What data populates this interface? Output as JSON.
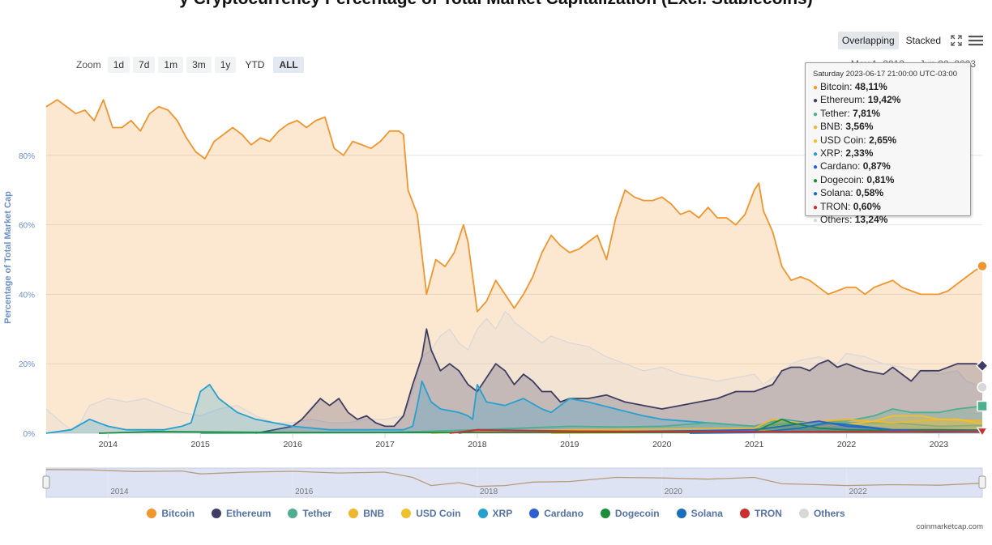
{
  "chart_title": "y Cryptocurrency Percentage of Total Market Capitalization (Excl. Stablecoins)",
  "toolbar": {
    "overlapping_label": "Overlapping",
    "stacked_label": "Stacked",
    "fullscreen_icon": "fullscreen-icon",
    "menu_icon": "hamburger-menu-icon"
  },
  "zoom": {
    "label": "Zoom",
    "buttons": [
      "1d",
      "7d",
      "1m",
      "3m",
      "1y",
      "YTD",
      "ALL"
    ],
    "active": "ALL"
  },
  "range_text": "May 1, 2013   →   Jun 20, 2023",
  "tooltip": {
    "header": "Saturday 2023-06-17 21:00:00 UTC-03:00",
    "rows": [
      {
        "name": "Bitcoin",
        "value": "48,11%",
        "color": "#f0952f"
      },
      {
        "name": "Ethereum",
        "value": "19,42%",
        "color": "#3f3d63"
      },
      {
        "name": "Tether",
        "value": "7,81%",
        "color": "#4fae8f"
      },
      {
        "name": "BNB",
        "value": "3,56%",
        "color": "#efb72f"
      },
      {
        "name": "USD Coin",
        "value": "2,65%",
        "color": "#f0c02d"
      },
      {
        "name": "XRP",
        "value": "2,33%",
        "color": "#27a0cf"
      },
      {
        "name": "Cardano",
        "value": "0,87%",
        "color": "#2d5fd0"
      },
      {
        "name": "Dogecoin",
        "value": "0,81%",
        "color": "#1b8e3d"
      },
      {
        "name": "Solana",
        "value": "0,58%",
        "color": "#1a6fbd"
      },
      {
        "name": "TRON",
        "value": "0,60%",
        "color": "#c8322e"
      },
      {
        "name": "Others",
        "value": "13,24%",
        "color": "#d8d8d8"
      }
    ]
  },
  "legend": [
    {
      "name": "Bitcoin",
      "color": "#f0952f"
    },
    {
      "name": "Ethereum",
      "color": "#3f3d63"
    },
    {
      "name": "Tether",
      "color": "#4fae8f"
    },
    {
      "name": "BNB",
      "color": "#efb72f"
    },
    {
      "name": "USD Coin",
      "color": "#f0c02d"
    },
    {
      "name": "XRP",
      "color": "#27a0cf"
    },
    {
      "name": "Cardano",
      "color": "#2d5fd0"
    },
    {
      "name": "Dogecoin",
      "color": "#1b8e3d"
    },
    {
      "name": "Solana",
      "color": "#1a6fbd"
    },
    {
      "name": "TRON",
      "color": "#c8322e"
    },
    {
      "name": "Others",
      "color": "#d8d8d8"
    }
  ],
  "credit": "coinmarketcap.com",
  "chart_data": {
    "type": "area",
    "ylabel": "Percentage of Total Market Cap",
    "yticks": [
      "0%",
      "20%",
      "40%",
      "60%",
      "80%"
    ],
    "ylim": [
      0,
      100
    ],
    "xlim": [
      2013.33,
      2023.47
    ],
    "xticks": [
      "2014",
      "2015",
      "2016",
      "2017",
      "2018",
      "2019",
      "2020",
      "2021",
      "2022",
      "2023"
    ],
    "navigator_ticks": [
      "2014",
      "2016",
      "2018",
      "2020",
      "2022"
    ],
    "grid": true,
    "series": [
      {
        "name": "Bitcoin",
        "color": "#f0952f",
        "x": [
          2013.33,
          2013.45,
          2013.55,
          2013.65,
          2013.75,
          2013.85,
          2013.95,
          2014.05,
          2014.15,
          2014.25,
          2014.35,
          2014.45,
          2014.55,
          2014.65,
          2014.75,
          2014.85,
          2014.95,
          2015.05,
          2015.15,
          2015.25,
          2015.35,
          2015.45,
          2015.55,
          2015.65,
          2015.75,
          2015.85,
          2015.95,
          2016.05,
          2016.15,
          2016.25,
          2016.35,
          2016.45,
          2016.55,
          2016.65,
          2016.75,
          2016.85,
          2016.95,
          2017.05,
          2017.15,
          2017.2,
          2017.25,
          2017.35,
          2017.45,
          2017.55,
          2017.65,
          2017.75,
          2017.85,
          2017.9,
          2017.95,
          2018.0,
          2018.1,
          2018.2,
          2018.3,
          2018.4,
          2018.5,
          2018.6,
          2018.7,
          2018.8,
          2018.9,
          2019.0,
          2019.1,
          2019.2,
          2019.3,
          2019.4,
          2019.5,
          2019.6,
          2019.7,
          2019.8,
          2019.9,
          2020.0,
          2020.1,
          2020.2,
          2020.3,
          2020.4,
          2020.5,
          2020.6,
          2020.7,
          2020.8,
          2020.9,
          2021.0,
          2021.05,
          2021.1,
          2021.15,
          2021.2,
          2021.3,
          2021.4,
          2021.5,
          2021.6,
          2021.7,
          2021.8,
          2021.9,
          2022.0,
          2022.1,
          2022.2,
          2022.3,
          2022.4,
          2022.5,
          2022.6,
          2022.7,
          2022.8,
          2022.9,
          2023.0,
          2023.1,
          2023.2,
          2023.3,
          2023.4,
          2023.47
        ],
        "values": [
          94,
          96,
          94,
          92,
          93,
          90,
          96,
          88,
          88,
          90,
          87,
          92,
          94,
          93,
          90,
          85,
          81,
          79,
          84,
          86,
          88,
          86,
          83,
          85,
          84,
          87,
          89,
          90,
          88,
          90,
          91,
          82,
          80,
          84,
          83,
          82,
          84,
          87,
          87,
          86,
          70,
          63,
          40,
          50,
          48,
          52,
          60,
          55,
          45,
          35,
          38,
          44,
          40,
          36,
          40,
          45,
          52,
          57,
          54,
          52,
          53,
          55,
          57,
          50,
          62,
          70,
          68,
          67,
          67,
          68,
          66,
          63,
          64,
          62,
          65,
          62,
          62,
          60,
          63,
          70,
          72,
          64,
          61,
          58,
          48,
          44,
          45,
          44,
          42,
          40,
          41,
          42,
          42,
          40,
          42,
          43,
          44,
          42,
          41,
          40,
          40,
          40,
          41,
          43,
          45,
          47,
          48
        ],
        "end_value": 48.11,
        "marker": "circle"
      },
      {
        "name": "Ethereum",
        "color": "#3f3d63",
        "x": [
          2015.6,
          2015.8,
          2016.0,
          2016.1,
          2016.2,
          2016.3,
          2016.4,
          2016.5,
          2016.6,
          2016.7,
          2016.8,
          2016.9,
          2017.0,
          2017.1,
          2017.2,
          2017.3,
          2017.4,
          2017.45,
          2017.5,
          2017.6,
          2017.7,
          2017.8,
          2017.9,
          2018.0,
          2018.1,
          2018.2,
          2018.3,
          2018.4,
          2018.5,
          2018.6,
          2018.7,
          2018.8,
          2018.9,
          2019.0,
          2019.2,
          2019.4,
          2019.6,
          2019.8,
          2020.0,
          2020.2,
          2020.4,
          2020.6,
          2020.8,
          2021.0,
          2021.2,
          2021.3,
          2021.4,
          2021.5,
          2021.6,
          2021.7,
          2021.8,
          2021.9,
          2022.0,
          2022.2,
          2022.4,
          2022.5,
          2022.7,
          2022.8,
          2023.0,
          2023.2,
          2023.4,
          2023.47
        ],
        "values": [
          0,
          1,
          2,
          4,
          7,
          10,
          8,
          10,
          6,
          4,
          5,
          3,
          2,
          2,
          5,
          14,
          22,
          30,
          24,
          18,
          20,
          18,
          14,
          12,
          16,
          20,
          18,
          14,
          17,
          15,
          12,
          12,
          9,
          10,
          10,
          11,
          9,
          8,
          7,
          8,
          9,
          10,
          12,
          12,
          14,
          18,
          19,
          19,
          18,
          20,
          21,
          19,
          20,
          18,
          17,
          19,
          15,
          18,
          18,
          20,
          20,
          19.4
        ],
        "end_value": 19.42,
        "marker": "diamond"
      },
      {
        "name": "XRP",
        "color": "#27a0cf",
        "x": [
          2013.33,
          2013.6,
          2013.8,
          2014.0,
          2014.2,
          2014.4,
          2014.6,
          2014.8,
          2014.9,
          2015.0,
          2015.1,
          2015.2,
          2015.4,
          2015.6,
          2015.8,
          2016.0,
          2016.4,
          2016.8,
          2017.0,
          2017.2,
          2017.3,
          2017.35,
          2017.4,
          2017.5,
          2017.6,
          2017.8,
          2017.9,
          2017.95,
          2018.0,
          2018.1,
          2018.3,
          2018.5,
          2018.7,
          2018.8,
          2018.9,
          2019.0,
          2019.2,
          2019.5,
          2019.8,
          2020.0,
          2020.5,
          2021.0,
          2021.3,
          2021.6,
          2022.0,
          2022.5,
          2023.0,
          2023.47
        ],
        "values": [
          0,
          1,
          4,
          2,
          1,
          1,
          1,
          2,
          3,
          12,
          14,
          10,
          6,
          4,
          3,
          2,
          1,
          1,
          1,
          1,
          2,
          8,
          15,
          9,
          7,
          6,
          5,
          4,
          14,
          9,
          8,
          10,
          7,
          6,
          8,
          10,
          9,
          7,
          5,
          4,
          3,
          2,
          4,
          3,
          3,
          3,
          2,
          2.3
        ],
        "end_value": 2.33,
        "marker": "none"
      },
      {
        "name": "Tether",
        "color": "#4fae8f",
        "x": [
          2015.0,
          2017.0,
          2018.0,
          2019.0,
          2019.5,
          2020.0,
          2020.5,
          2021.0,
          2021.5,
          2022.0,
          2022.3,
          2022.5,
          2022.7,
          2023.0,
          2023.2,
          2023.47
        ],
        "values": [
          0,
          0.2,
          1,
          2,
          1.8,
          2,
          3,
          2,
          3,
          3.5,
          5,
          7,
          6,
          6,
          7,
          7.8
        ],
        "end_value": 7.81,
        "marker": "square"
      },
      {
        "name": "BNB",
        "color": "#efb72f",
        "x": [
          2017.5,
          2018.0,
          2019.0,
          2020.0,
          2021.0,
          2021.2,
          2021.5,
          2022.0,
          2022.5,
          2023.0,
          2023.47
        ],
        "values": [
          0,
          0.5,
          1,
          1.2,
          1.5,
          4,
          3,
          4,
          3,
          4,
          3.6
        ],
        "end_value": 3.56,
        "marker": "none"
      },
      {
        "name": "USD Coin",
        "color": "#f0c02d",
        "x": [
          2018.8,
          2020.0,
          2021.0,
          2021.5,
          2022.0,
          2022.3,
          2022.5,
          2022.8,
          2023.0,
          2023.2,
          2023.47
        ],
        "values": [
          0,
          0.2,
          0.5,
          1.5,
          2.5,
          3.5,
          5,
          5,
          4,
          4,
          2.7
        ],
        "end_value": 2.65,
        "marker": "none"
      },
      {
        "name": "Cardano",
        "color": "#2d5fd0",
        "x": [
          2017.8,
          2018.0,
          2018.5,
          2019.5,
          2020.5,
          2021.0,
          2021.3,
          2021.7,
          2022.0,
          2022.5,
          2023.0,
          2023.47
        ],
        "values": [
          0,
          1,
          0.8,
          0.5,
          0.8,
          1,
          2,
          3.5,
          2,
          1,
          1,
          0.9
        ],
        "end_value": 0.87,
        "marker": "none"
      },
      {
        "name": "Dogecoin",
        "color": "#1b8e3d",
        "x": [
          2013.9,
          2014.5,
          2016.0,
          2017.5,
          2019.0,
          2020.5,
          2021.0,
          2021.3,
          2021.4,
          2021.7,
          2022.0,
          2022.5,
          2023.0,
          2023.47
        ],
        "values": [
          0,
          0.5,
          0.2,
          0.2,
          0.2,
          0.2,
          0.5,
          4,
          3,
          1.5,
          1,
          0.8,
          0.9,
          0.8
        ],
        "end_value": 0.81,
        "marker": "none"
      },
      {
        "name": "Solana",
        "color": "#1a6fbd",
        "x": [
          2020.3,
          2021.0,
          2021.5,
          2021.8,
          2022.0,
          2022.5,
          2022.9,
          2023.47
        ],
        "values": [
          0,
          0.2,
          1.5,
          3,
          2.5,
          1,
          0.4,
          0.6
        ],
        "end_value": 0.58,
        "marker": "none"
      },
      {
        "name": "TRON",
        "color": "#c8322e",
        "x": [
          2017.7,
          2018.0,
          2018.3,
          2019.0,
          2020.0,
          2021.0,
          2022.0,
          2023.0,
          2023.47
        ],
        "values": [
          0,
          1,
          0.8,
          0.6,
          0.5,
          0.5,
          0.5,
          0.6,
          0.6
        ],
        "end_value": 0.6,
        "marker": "triangle"
      },
      {
        "name": "Others",
        "color": "#d8d8d8",
        "x": [
          2013.33,
          2013.5,
          2013.6,
          2013.7,
          2013.8,
          2014.0,
          2014.2,
          2014.4,
          2014.6,
          2014.8,
          2015.0,
          2015.2,
          2015.4,
          2015.6,
          2015.8,
          2016.0,
          2016.2,
          2016.4,
          2016.6,
          2016.8,
          2017.0,
          2017.2,
          2017.3,
          2017.4,
          2017.5,
          2017.6,
          2017.7,
          2017.8,
          2017.9,
          2018.0,
          2018.1,
          2018.2,
          2018.3,
          2018.35,
          2018.4,
          2018.5,
          2018.6,
          2018.7,
          2018.8,
          2019.0,
          2019.2,
          2019.4,
          2019.6,
          2019.8,
          2020.0,
          2020.2,
          2020.4,
          2020.6,
          2020.8,
          2021.0,
          2021.1,
          2021.2,
          2021.3,
          2021.4,
          2021.5,
          2021.7,
          2021.9,
          2022.0,
          2022.2,
          2022.4,
          2022.6,
          2022.8,
          2023.0,
          2023.2,
          2023.3,
          2023.47
        ],
        "values": [
          7,
          3,
          1,
          3,
          8,
          10,
          9,
          10,
          8,
          6,
          5,
          7,
          8,
          5,
          3,
          3,
          4,
          3,
          3,
          4,
          4,
          5,
          12,
          22,
          24,
          28,
          30,
          26,
          24,
          30,
          33,
          30,
          35,
          34,
          32,
          30,
          28,
          26,
          28,
          26,
          25,
          22,
          20,
          18,
          19,
          17,
          16,
          15,
          16,
          17,
          14,
          16,
          17,
          20,
          21,
          22,
          20,
          23,
          22,
          20,
          19,
          18,
          17,
          18,
          15,
          13.2
        ],
        "end_value": 13.24,
        "marker": "circle"
      }
    ],
    "navigator": {
      "x": [
        2013.33,
        2013.8,
        2014.3,
        2014.8,
        2015.0,
        2015.5,
        2016.0,
        2016.5,
        2017.0,
        2017.3,
        2017.5,
        2017.8,
        2018.0,
        2018.3,
        2018.6,
        2019.0,
        2019.5,
        2020.0,
        2020.5,
        2021.0,
        2021.3,
        2021.7,
        2022.0,
        2022.5,
        2023.0,
        2023.47
      ],
      "values": [
        95,
        94,
        88,
        90,
        80,
        86,
        89,
        83,
        86,
        68,
        40,
        50,
        37,
        40,
        52,
        54,
        68,
        66,
        62,
        68,
        46,
        43,
        40,
        43,
        41,
        48
      ]
    }
  }
}
